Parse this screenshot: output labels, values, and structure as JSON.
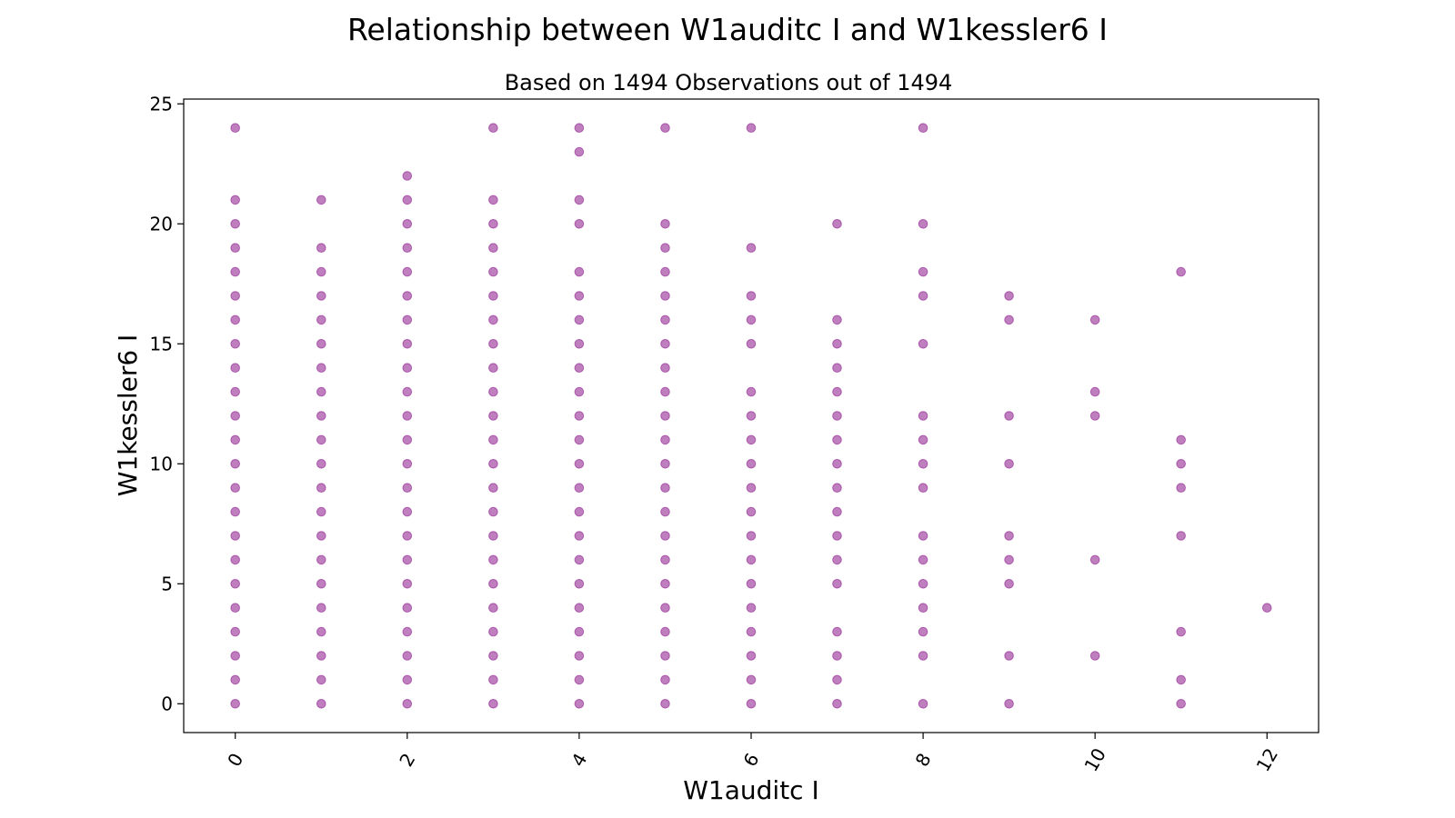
{
  "chart_data": {
    "type": "scatter",
    "title": "Relationship between W1auditc I and W1kessler6 I",
    "subtitle": "Based on 1494 Observations out of 1494",
    "xlabel": "W1auditc I",
    "ylabel": "W1kessler6 I",
    "xlim": [
      -0.6,
      12.6
    ],
    "ylim": [
      -1.2,
      25.2
    ],
    "xticks": [
      0,
      2,
      4,
      6,
      8,
      10,
      12
    ],
    "yticks": [
      0,
      5,
      10,
      15,
      20,
      25
    ],
    "xtick_rotation": -60,
    "grid": false,
    "legend": "none",
    "marker_color": "#800080",
    "marker_opacity": 0.5,
    "points": [
      {
        "x": 0,
        "ys": [
          0,
          1,
          2,
          3,
          4,
          5,
          6,
          7,
          8,
          9,
          10,
          11,
          12,
          13,
          14,
          15,
          16,
          17,
          18,
          19,
          20,
          21,
          24
        ]
      },
      {
        "x": 1,
        "ys": [
          0,
          1,
          2,
          3,
          4,
          5,
          6,
          7,
          8,
          9,
          10,
          11,
          12,
          13,
          14,
          15,
          16,
          17,
          18,
          19,
          21
        ]
      },
      {
        "x": 2,
        "ys": [
          0,
          1,
          2,
          3,
          4,
          5,
          6,
          7,
          8,
          9,
          10,
          11,
          12,
          13,
          14,
          15,
          16,
          17,
          18,
          19,
          20,
          21,
          22
        ]
      },
      {
        "x": 3,
        "ys": [
          0,
          1,
          2,
          3,
          4,
          5,
          6,
          7,
          8,
          9,
          10,
          11,
          12,
          13,
          14,
          15,
          16,
          17,
          18,
          19,
          20,
          21,
          24
        ]
      },
      {
        "x": 4,
        "ys": [
          0,
          1,
          2,
          3,
          4,
          5,
          6,
          7,
          8,
          9,
          10,
          11,
          12,
          13,
          14,
          15,
          16,
          17,
          18,
          20,
          21,
          23,
          24
        ]
      },
      {
        "x": 5,
        "ys": [
          0,
          1,
          2,
          3,
          4,
          5,
          6,
          7,
          8,
          9,
          10,
          11,
          12,
          13,
          14,
          15,
          16,
          17,
          18,
          19,
          20,
          24
        ]
      },
      {
        "x": 6,
        "ys": [
          0,
          1,
          2,
          3,
          4,
          5,
          6,
          7,
          8,
          9,
          10,
          11,
          12,
          13,
          15,
          16,
          17,
          19,
          24
        ]
      },
      {
        "x": 7,
        "ys": [
          0,
          1,
          2,
          3,
          5,
          6,
          7,
          8,
          9,
          10,
          11,
          12,
          13,
          14,
          15,
          16,
          20
        ]
      },
      {
        "x": 8,
        "ys": [
          0,
          2,
          3,
          4,
          5,
          6,
          7,
          9,
          10,
          11,
          12,
          15,
          17,
          18,
          20,
          24
        ]
      },
      {
        "x": 9,
        "ys": [
          0,
          2,
          5,
          6,
          7,
          10,
          12,
          16,
          17
        ]
      },
      {
        "x": 10,
        "ys": [
          2,
          6,
          12,
          13,
          16
        ]
      },
      {
        "x": 11,
        "ys": [
          0,
          1,
          3,
          7,
          9,
          10,
          11,
          18
        ]
      },
      {
        "x": 12,
        "ys": [
          4
        ]
      }
    ]
  }
}
